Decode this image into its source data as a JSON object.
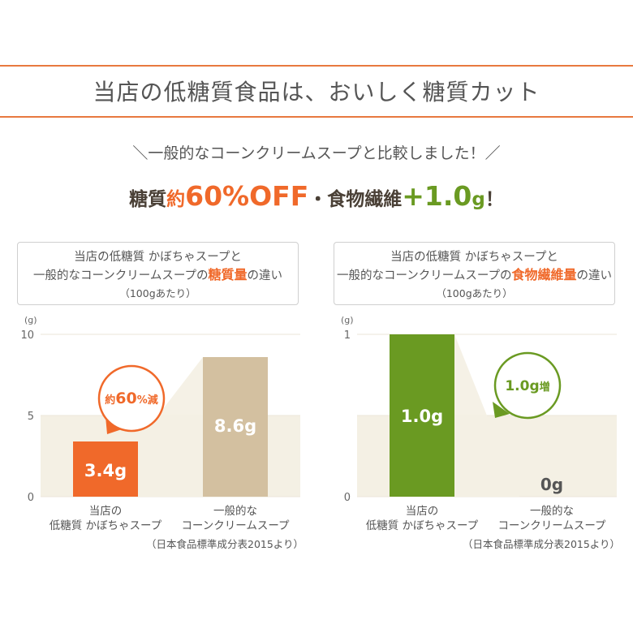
{
  "header": {
    "title": "当店の低糖質食品は、おいしく糖質カット",
    "subtitle": "＼一般的なコーンクリームスープと比較しました！／",
    "headline": {
      "p1": "糖質",
      "p2": "約",
      "p3": "60%OFF",
      "p4": "・食物繊維",
      "p5": "+",
      "p6": "1.0",
      "p7": "g",
      "p8": "！"
    }
  },
  "colors": {
    "accent_orange": "#f0692a",
    "accent_green": "#6a9a22",
    "tan": "#d3c0a0",
    "band": "#f4f0e4",
    "rule": "#e8793f"
  },
  "chart_data": [
    {
      "type": "bar",
      "title_line1": "当店の低糖質 かぼちゃスープと",
      "title_line2_pre": "一般的なコーンクリームスープの",
      "title_highlight": "糖質量",
      "title_line2_post": "の違い",
      "title_line3": "（100gあたり）",
      "ylabel": "(g)",
      "ylim": [
        0,
        10
      ],
      "yticks": [
        "0",
        "5",
        "10"
      ],
      "categories": [
        [
          "当店の",
          "低糖質 かぼちゃスープ"
        ],
        [
          "一般的な",
          "コーンクリームスープ"
        ]
      ],
      "values": [
        3.4,
        8.6
      ],
      "value_labels": [
        "3.4g",
        "8.6g"
      ],
      "callout": {
        "pre": "約",
        "num": "60",
        "post": "%減"
      },
      "source": "（日本食品標準成分表2015より）"
    },
    {
      "type": "bar",
      "title_line1": "当店の低糖質 かぼちゃスープと",
      "title_line2_pre": "一般的なコーンクリームスープの",
      "title_highlight": "食物繊維量",
      "title_line2_post": "の違い",
      "title_line3": "（100gあたり）",
      "ylabel": "(g)",
      "ylim": [
        0,
        1
      ],
      "yticks": [
        "0",
        "1"
      ],
      "categories": [
        [
          "当店の",
          "低糖質 かぼちゃスープ"
        ],
        [
          "一般的な",
          "コーンクリームスープ"
        ]
      ],
      "values": [
        1.0,
        0
      ],
      "value_labels": [
        "1.0g",
        "0g"
      ],
      "callout": {
        "pre": "",
        "num": "1.0g",
        "post": "増"
      },
      "source": "（日本食品標準成分表2015より）"
    }
  ]
}
